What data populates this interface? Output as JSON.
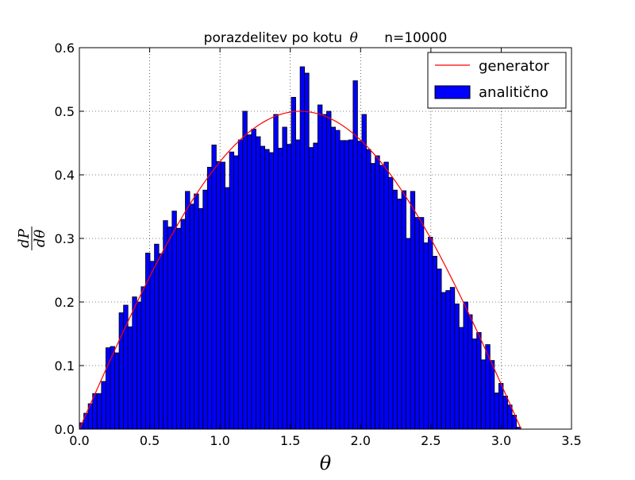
{
  "chart_data": {
    "type": "bar",
    "title": "porazdelitev po kotu",
    "title_symbol": "θ",
    "title_suffix": "n=10000",
    "xlabel": "θ",
    "ylabel_numerator": "dP",
    "ylabel_denominator": "dθ",
    "xlim": [
      0.0,
      3.5
    ],
    "ylim": [
      0.0,
      0.6
    ],
    "xticks": [
      "0.0",
      "0.5",
      "1.0",
      "1.5",
      "2.0",
      "2.5",
      "3.0",
      "3.5"
    ],
    "yticks": [
      "0.0",
      "0.1",
      "0.2",
      "0.3",
      "0.4",
      "0.5",
      "0.6"
    ],
    "grid": true,
    "legend_position": "top-right",
    "colors": {
      "bars": "#0000ff",
      "bar_edge": "#000000",
      "curve": "#ff0000"
    },
    "series": [
      {
        "name": "generator",
        "type": "line",
        "function": "0.5*sin(theta)",
        "x_range": [
          0.0,
          3.1416
        ]
      },
      {
        "name": "analitično",
        "type": "bar",
        "bin_start": 0.0,
        "bin_width": 0.0314,
        "values": [
          0.01,
          0.025,
          0.04,
          0.056,
          0.056,
          0.075,
          0.128,
          0.13,
          0.12,
          0.183,
          0.195,
          0.161,
          0.208,
          0.2,
          0.224,
          0.277,
          0.264,
          0.291,
          0.276,
          0.328,
          0.318,
          0.343,
          0.316,
          0.33,
          0.374,
          0.354,
          0.37,
          0.347,
          0.376,
          0.412,
          0.447,
          0.421,
          0.42,
          0.38,
          0.436,
          0.43,
          0.455,
          0.5,
          0.463,
          0.472,
          0.46,
          0.445,
          0.44,
          0.435,
          0.495,
          0.442,
          0.475,
          0.448,
          0.522,
          0.455,
          0.57,
          0.56,
          0.443,
          0.45,
          0.51,
          0.495,
          0.5,
          0.475,
          0.47,
          0.454,
          0.454,
          0.455,
          0.548,
          0.453,
          0.495,
          0.44,
          0.418,
          0.43,
          0.415,
          0.42,
          0.396,
          0.376,
          0.362,
          0.375,
          0.3,
          0.374,
          0.333,
          0.333,
          0.293,
          0.302,
          0.272,
          0.252,
          0.215,
          0.218,
          0.223,
          0.197,
          0.16,
          0.2,
          0.18,
          0.142,
          0.152,
          0.109,
          0.133,
          0.108,
          0.057,
          0.072,
          0.052,
          0.038,
          0.022,
          0.003
        ]
      }
    ]
  }
}
